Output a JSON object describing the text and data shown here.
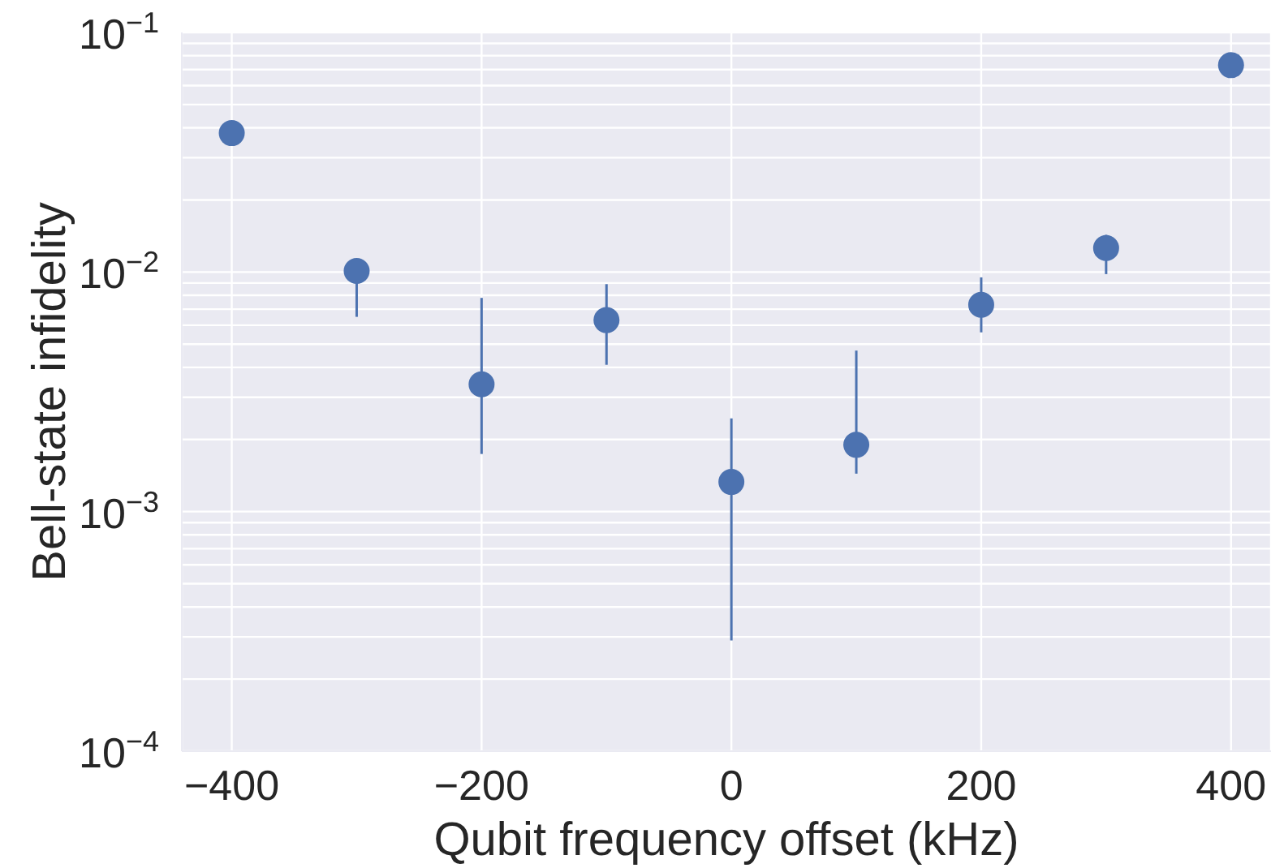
{
  "chart_data": {
    "type": "scatter",
    "xlabel": "Qubit frequency offset (kHz)",
    "ylabel": "Bell-state infidelity",
    "x": [
      -400,
      -300,
      -200,
      -100,
      0,
      100,
      200,
      300,
      400
    ],
    "series": [
      {
        "color": "#4c72b0",
        "values": [
          0.038,
          0.0101,
          0.0034,
          0.0063,
          0.00133,
          0.0019,
          0.0073,
          0.0126,
          0.073
        ],
        "errors": [
          null,
          [
            0.0065,
            0.011
          ],
          [
            0.00174,
            0.0078
          ],
          [
            0.0041,
            0.0089
          ],
          [
            0.00029,
            0.00245
          ],
          [
            0.00144,
            0.0047
          ],
          [
            0.0056,
            0.0095
          ],
          [
            0.0098,
            0.0143
          ],
          null
        ]
      }
    ],
    "log": "y",
    "marker": "circle",
    "grid": true,
    "xlim": [
      -440,
      432
    ],
    "xticks": [
      -400,
      -200,
      0,
      200,
      400
    ],
    "ylim": [
      0.0001,
      0.1
    ],
    "yticks": [
      {
        "value": 0.0001,
        "label": "10$^{−4}$"
      },
      {
        "value": 0.0002,
        "label": null
      },
      {
        "value": 0.0003,
        "label": null
      },
      {
        "value": 0.0004,
        "label": null
      },
      {
        "value": 0.0005,
        "label": null
      },
      {
        "value": 0.0006,
        "label": null
      },
      {
        "value": 0.0007,
        "label": null
      },
      {
        "value": 0.0008,
        "label": null
      },
      {
        "value": 0.0009,
        "label": null
      },
      {
        "value": 0.001,
        "label": "10$^{−3}$"
      },
      {
        "value": 0.002,
        "label": null
      },
      {
        "value": 0.003,
        "label": null
      },
      {
        "value": 0.004,
        "label": null
      },
      {
        "value": 0.005,
        "label": null
      },
      {
        "value": 0.006,
        "label": null
      },
      {
        "value": 0.007,
        "label": null
      },
      {
        "value": 0.008,
        "label": null
      },
      {
        "value": 0.009,
        "label": null
      },
      {
        "value": 0.01,
        "label": "10$^{−2}$"
      },
      {
        "value": 0.02,
        "label": null
      },
      {
        "value": 0.03,
        "label": null
      },
      {
        "value": 0.04,
        "label": null
      },
      {
        "value": 0.05,
        "label": null
      },
      {
        "value": 0.06,
        "label": null
      },
      {
        "value": 0.07,
        "label": null
      },
      {
        "value": 0.08,
        "label": null
      },
      {
        "value": 0.09,
        "label": null
      },
      {
        "value": 0.1,
        "label": "10$^{−1}$"
      }
    ]
  }
}
